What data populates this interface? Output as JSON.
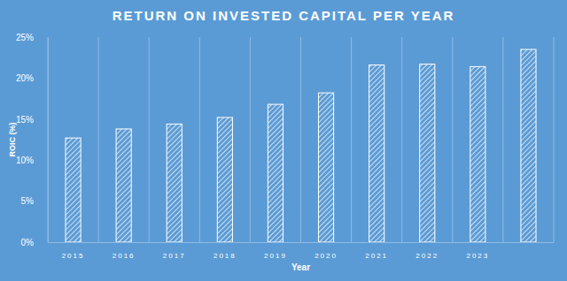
{
  "chart_data": {
    "type": "bar",
    "title": "RETURN ON INVESTED CAPITAL PER YEAR",
    "x_label": "Year",
    "y_label": "ROIC (%)",
    "categories": [
      "2015",
      "2016",
      "2017",
      "2018",
      "2019",
      "2020",
      "2021",
      "2022",
      "2023",
      null
    ],
    "values": [
      12.7,
      13.8,
      14.4,
      15.2,
      16.8,
      18.2,
      21.6,
      21.7,
      21.4,
      23.5
    ],
    "color": "#ffffff",
    "ylim": [
      0,
      25
    ],
    "yticks": [
      {
        "value": 0,
        "label": "0%"
      },
      {
        "value": 5,
        "label": "5%"
      },
      {
        "value": 10,
        "label": "10%"
      },
      {
        "value": 15,
        "label": "15%"
      },
      {
        "value": 20,
        "label": "20%"
      },
      {
        "value": 25,
        "label": "25%"
      }
    ],
    "grid": true
  }
}
